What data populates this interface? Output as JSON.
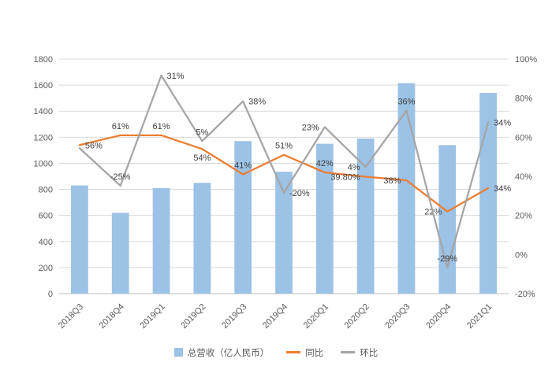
{
  "chart_data": {
    "type": "bar",
    "subtype": "combo-bar-line",
    "categories": [
      "2018Q3",
      "2018Q4",
      "2019Q1",
      "2019Q2",
      "2019Q3",
      "2019Q4",
      "2020Q1",
      "2020Q2",
      "2020Q3",
      "2020Q4",
      "2021Q1"
    ],
    "left_axis": {
      "min": 0,
      "max": 1800,
      "step": 200
    },
    "right_axis": {
      "min": -20,
      "max": 100,
      "step": 20,
      "suffix": "%"
    },
    "grid": true,
    "legend_position": "bottom",
    "colors": {
      "bar": "#9CC2E5",
      "yoy_line": "#ED7D31",
      "qoq_line": "#A5A5A5",
      "gridline": "#D9D9D9",
      "axis_line": "#BFBFBF",
      "axis_text": "#595959",
      "data_label": "#3F3F3F",
      "background": "#FFFFFF"
    },
    "series": [
      {
        "key": "revenue",
        "name": "总营收（亿人民币）",
        "type": "bar",
        "axis": "left",
        "color": "#9CC2E5",
        "values": [
          830,
          620,
          810,
          850,
          1170,
          935,
          1150,
          1190,
          1615,
          1140,
          1540
        ]
      },
      {
        "key": "yoy",
        "name": "同比",
        "type": "line",
        "axis": "right",
        "color": "#ED7D31",
        "values_pct": [
          56,
          61,
          61,
          54,
          41,
          51,
          42,
          39.8,
          38,
          22,
          34
        ],
        "labels": [
          "56%",
          "61%",
          "61%",
          "54%",
          "41%",
          "51%",
          "42%",
          "39.80%",
          "38%",
          "22%",
          "34%"
        ],
        "label_pos": [
          "right",
          "above",
          "above",
          "below",
          "above",
          "above",
          "above",
          "left",
          "left",
          "left",
          "right"
        ]
      },
      {
        "key": "qoq",
        "name": "环比",
        "type": "line",
        "axis": "hidden-exaggerated",
        "color": "#A5A5A5",
        "values_pct": [
          null,
          -25,
          31,
          5,
          38,
          -20,
          23,
          4,
          36,
          -29,
          34
        ],
        "labels": [
          "",
          "-25%",
          "31%",
          "5%",
          "38%",
          "-20%",
          "23%",
          "4%",
          "36%",
          "-29%",
          "34%"
        ],
        "label_pos": [
          "none",
          "above",
          "right",
          "above",
          "right",
          "right",
          "left",
          "left",
          "above",
          "above",
          "right"
        ],
        "plot_fractions": [
          0.62,
          0.46,
          0.93,
          0.65,
          0.82,
          0.43,
          0.71,
          0.54,
          0.78,
          0.11,
          0.73
        ]
      }
    ]
  }
}
